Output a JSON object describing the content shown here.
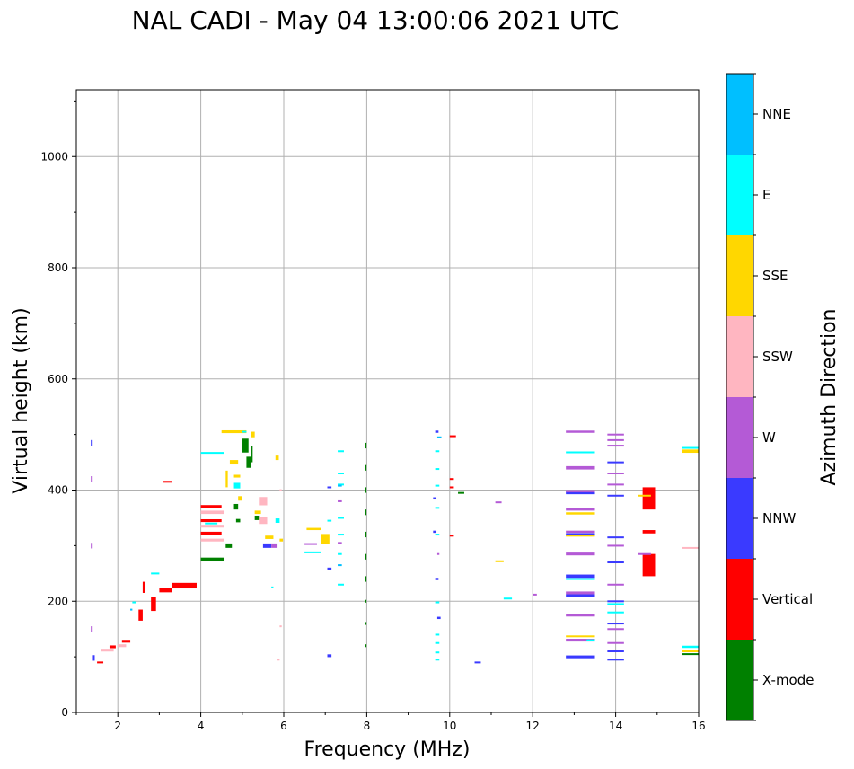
{
  "chart_data": {
    "type": "scatter",
    "title": "NAL CADI - May 04 13:00:06 2021 UTC",
    "xlabel": "Frequency (MHz)",
    "ylabel": "Virtual height (km)",
    "xlim": [
      1.0,
      16.0
    ],
    "ylim": [
      0,
      1120
    ],
    "x_ticks": [
      2,
      4,
      6,
      8,
      10,
      12,
      14,
      16
    ],
    "x_tick_labels": [
      "2",
      "4",
      "6",
      "8",
      "10",
      "12",
      "14",
      "16"
    ],
    "y_ticks": [
      0,
      200,
      400,
      600,
      800,
      1000
    ],
    "y_tick_labels": [
      "0",
      "200",
      "400",
      "600",
      "800",
      "1000"
    ],
    "grid": true,
    "colorbar": {
      "label": "Azimuth Direction",
      "categories": [
        "X-mode",
        "Vertical",
        "NNW",
        "W",
        "SSW",
        "SSE",
        "E",
        "NNE"
      ],
      "colors": [
        "#008000",
        "#ff0000",
        "#3a3aff",
        "#b45ad6",
        "#ffb6c1",
        "#ffd700",
        "#00ffff",
        "#00bfff"
      ]
    },
    "series": [
      {
        "name": "X-mode",
        "points": [
          [
            4.0,
            275,
            0.55,
            7
          ],
          [
            4.6,
            300,
            0.15,
            8
          ],
          [
            5.0,
            480,
            0.15,
            25
          ],
          [
            5.1,
            450,
            0.1,
            20
          ],
          [
            4.8,
            370,
            0.1,
            10
          ],
          [
            4.85,
            345,
            0.1,
            6
          ],
          [
            5.3,
            350,
            0.1,
            8
          ],
          [
            7.95,
            480,
            0.04,
            10
          ],
          [
            7.95,
            440,
            0.04,
            10
          ],
          [
            7.95,
            400,
            0.04,
            10
          ],
          [
            7.95,
            360,
            0.04,
            10
          ],
          [
            7.95,
            320,
            0.04,
            10
          ],
          [
            7.95,
            280,
            0.04,
            10
          ],
          [
            7.95,
            240,
            0.04,
            10
          ],
          [
            7.95,
            200,
            0.04,
            5
          ],
          [
            7.95,
            160,
            0.04,
            5
          ],
          [
            7.95,
            120,
            0.04,
            5
          ],
          [
            10.2,
            395,
            0.15,
            3
          ],
          [
            15.6,
            105,
            0.4,
            3
          ],
          [
            5.2,
            465,
            0.05,
            30
          ]
        ]
      },
      {
        "name": "Vertical",
        "points": [
          [
            1.5,
            90,
            0.15,
            3
          ],
          [
            1.8,
            118,
            0.15,
            5
          ],
          [
            2.1,
            128,
            0.2,
            5
          ],
          [
            2.5,
            175,
            0.1,
            20
          ],
          [
            2.8,
            195,
            0.12,
            25
          ],
          [
            3.0,
            220,
            0.3,
            8
          ],
          [
            3.3,
            228,
            0.6,
            10
          ],
          [
            3.1,
            415,
            0.2,
            3
          ],
          [
            4.0,
            370,
            0.5,
            6
          ],
          [
            4.0,
            345,
            0.5,
            5
          ],
          [
            4.0,
            322,
            0.5,
            6
          ],
          [
            10.0,
            497,
            0.15,
            3
          ],
          [
            10.0,
            420,
            0.1,
            3
          ],
          [
            10.0,
            405,
            0.1,
            3
          ],
          [
            10.0,
            318,
            0.1,
            3
          ],
          [
            14.65,
            385,
            0.3,
            40
          ],
          [
            14.65,
            325,
            0.3,
            6
          ],
          [
            14.65,
            265,
            0.3,
            40
          ],
          [
            2.6,
            225,
            0.05,
            20
          ]
        ]
      },
      {
        "name": "NNW",
        "points": [
          [
            1.35,
            485,
            0.04,
            10
          ],
          [
            1.4,
            98,
            0.04,
            10
          ],
          [
            5.5,
            300,
            0.2,
            8
          ],
          [
            7.05,
            405,
            0.1,
            3
          ],
          [
            7.05,
            258,
            0.1,
            5
          ],
          [
            7.05,
            102,
            0.1,
            5
          ],
          [
            9.6,
            385,
            0.08,
            4
          ],
          [
            9.6,
            325,
            0.08,
            4
          ],
          [
            9.65,
            240,
            0.08,
            4
          ],
          [
            9.7,
            170,
            0.08,
            4
          ],
          [
            10.6,
            90,
            0.15,
            3
          ],
          [
            12.8,
            395,
            0.7,
            5
          ],
          [
            12.8,
            320,
            0.7,
            5
          ],
          [
            12.8,
            245,
            0.7,
            6
          ],
          [
            12.8,
            210,
            0.7,
            5
          ],
          [
            12.8,
            100,
            0.7,
            5
          ],
          [
            13.8,
            450,
            0.4,
            3
          ],
          [
            13.8,
            390,
            0.4,
            3
          ],
          [
            13.8,
            315,
            0.4,
            3
          ],
          [
            13.8,
            270,
            0.4,
            3
          ],
          [
            13.8,
            200,
            0.4,
            3
          ],
          [
            13.8,
            160,
            0.4,
            3
          ],
          [
            13.8,
            110,
            0.4,
            3
          ],
          [
            13.8,
            95,
            0.4,
            3
          ],
          [
            9.65,
            505,
            0.08,
            4
          ]
        ]
      },
      {
        "name": "W",
        "points": [
          [
            1.35,
            420,
            0.04,
            10
          ],
          [
            1.35,
            300,
            0.04,
            10
          ],
          [
            1.35,
            150,
            0.04,
            10
          ],
          [
            5.7,
            300,
            0.15,
            8
          ],
          [
            6.5,
            303,
            0.3,
            3
          ],
          [
            7.3,
            380,
            0.1,
            3
          ],
          [
            7.3,
            305,
            0.1,
            3
          ],
          [
            11.1,
            378,
            0.15,
            3
          ],
          [
            12.0,
            212,
            0.1,
            3
          ],
          [
            12.8,
            505,
            0.7,
            4
          ],
          [
            12.8,
            440,
            0.7,
            6
          ],
          [
            12.8,
            398,
            0.7,
            4
          ],
          [
            12.8,
            365,
            0.7,
            4
          ],
          [
            12.8,
            325,
            0.7,
            4
          ],
          [
            12.8,
            285,
            0.7,
            5
          ],
          [
            12.8,
            215,
            0.7,
            5
          ],
          [
            12.8,
            175,
            0.7,
            5
          ],
          [
            12.8,
            130,
            0.7,
            5
          ],
          [
            13.8,
            500,
            0.4,
            3
          ],
          [
            13.8,
            490,
            0.4,
            3
          ],
          [
            13.8,
            480,
            0.4,
            3
          ],
          [
            13.8,
            430,
            0.4,
            3
          ],
          [
            13.8,
            410,
            0.4,
            3
          ],
          [
            13.8,
            300,
            0.4,
            3
          ],
          [
            13.8,
            230,
            0.4,
            3
          ],
          [
            13.8,
            150,
            0.4,
            3
          ],
          [
            13.8,
            125,
            0.4,
            3
          ],
          [
            14.55,
            285,
            0.3,
            3
          ],
          [
            9.7,
            285,
            0.05,
            3
          ]
        ]
      },
      {
        "name": "SSW",
        "points": [
          [
            1.6,
            112,
            0.3,
            5
          ],
          [
            2.0,
            120,
            0.2,
            5
          ],
          [
            4.0,
            360,
            0.55,
            6
          ],
          [
            4.0,
            335,
            0.55,
            5
          ],
          [
            4.0,
            310,
            0.55,
            5
          ],
          [
            5.4,
            380,
            0.2,
            15
          ],
          [
            5.4,
            345,
            0.2,
            12
          ],
          [
            15.6,
            296,
            0.4,
            3
          ],
          [
            5.9,
            400,
            0.05,
            3
          ],
          [
            5.9,
            155,
            0.05,
            3
          ],
          [
            5.85,
            95,
            0.05,
            3
          ]
        ]
      },
      {
        "name": "SSE",
        "points": [
          [
            4.5,
            505,
            0.6,
            5
          ],
          [
            4.7,
            450,
            0.2,
            8
          ],
          [
            4.8,
            425,
            0.15,
            5
          ],
          [
            4.9,
            385,
            0.1,
            8
          ],
          [
            5.3,
            360,
            0.15,
            6
          ],
          [
            5.55,
            315,
            0.2,
            6
          ],
          [
            5.8,
            458,
            0.08,
            8
          ],
          [
            5.9,
            310,
            0.08,
            5
          ],
          [
            6.55,
            330,
            0.35,
            4
          ],
          [
            6.9,
            312,
            0.2,
            18
          ],
          [
            11.1,
            272,
            0.2,
            3
          ],
          [
            12.8,
            358,
            0.7,
            4
          ],
          [
            12.8,
            318,
            0.7,
            3
          ],
          [
            12.8,
            137,
            0.7,
            3
          ],
          [
            14.55,
            390,
            0.3,
            3
          ],
          [
            15.6,
            470,
            0.4,
            6
          ],
          [
            15.6,
            110,
            0.4,
            3
          ],
          [
            4.6,
            420,
            0.05,
            30
          ],
          [
            5.2,
            500,
            0.1,
            10
          ]
        ]
      },
      {
        "name": "E",
        "points": [
          [
            2.35,
            198,
            0.1,
            3
          ],
          [
            2.8,
            250,
            0.2,
            3
          ],
          [
            4.0,
            467,
            0.55,
            3
          ],
          [
            4.8,
            408,
            0.15,
            10
          ],
          [
            5.8,
            345,
            0.1,
            8
          ],
          [
            5.7,
            225,
            0.05,
            3
          ],
          [
            6.5,
            288,
            0.4,
            3
          ],
          [
            7.05,
            345,
            0.1,
            3
          ],
          [
            7.3,
            470,
            0.15,
            3
          ],
          [
            7.3,
            430,
            0.15,
            3
          ],
          [
            7.3,
            410,
            0.15,
            3
          ],
          [
            7.3,
            350,
            0.15,
            3
          ],
          [
            7.3,
            320,
            0.15,
            3
          ],
          [
            7.3,
            230,
            0.15,
            3
          ],
          [
            7.3,
            285,
            0.1,
            3
          ],
          [
            9.65,
            470,
            0.1,
            3
          ],
          [
            9.65,
            438,
            0.1,
            3
          ],
          [
            9.65,
            408,
            0.1,
            3
          ],
          [
            9.65,
            368,
            0.1,
            3
          ],
          [
            9.65,
            198,
            0.1,
            3
          ],
          [
            9.65,
            140,
            0.1,
            3
          ],
          [
            9.65,
            125,
            0.1,
            3
          ],
          [
            9.65,
            108,
            0.1,
            3
          ],
          [
            9.65,
            95,
            0.1,
            3
          ],
          [
            11.3,
            205,
            0.2,
            3
          ],
          [
            12.8,
            468,
            0.7,
            3
          ],
          [
            12.8,
            240,
            0.7,
            3
          ],
          [
            13.3,
            130,
            0.2,
            3
          ],
          [
            13.8,
            195,
            0.4,
            3
          ],
          [
            13.8,
            180,
            0.4,
            3
          ],
          [
            15.6,
            476,
            0.4,
            3
          ],
          [
            15.6,
            118,
            0.4,
            4
          ],
          [
            4.1,
            340,
            0.3,
            3
          ],
          [
            5.0,
            505,
            0.1,
            3
          ],
          [
            9.65,
            320,
            0.1,
            3
          ]
        ]
      },
      {
        "name": "NNE",
        "points": [
          [
            7.3,
            408,
            0.1,
            3
          ],
          [
            7.3,
            265,
            0.1,
            3
          ],
          [
            9.7,
            495,
            0.1,
            3
          ],
          [
            2.3,
            185,
            0.05,
            3
          ]
        ]
      }
    ]
  }
}
